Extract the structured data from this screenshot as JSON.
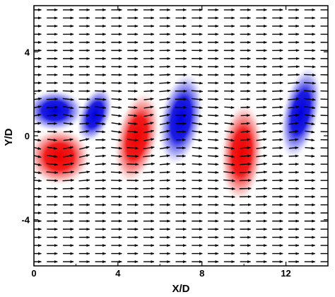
{
  "chart_data": {
    "type": "heatmap",
    "subtype": "vorticity contour with velocity vector field",
    "xlabel": "X/D",
    "ylabel": "Y/D",
    "xlim": [
      0,
      14
    ],
    "ylim": [
      -6.2,
      6.2
    ],
    "x_ticks": [
      0,
      4,
      8,
      12
    ],
    "x_tick_labels": [
      "0",
      "4",
      "8",
      "12"
    ],
    "y_ticks": [
      4,
      0,
      -4
    ],
    "y_tick_labels": [
      "4",
      "0",
      "-4"
    ],
    "grid": false,
    "legend": "none",
    "colors": {
      "positive": "#ee0000",
      "negative": "#0000dd",
      "arrow": "#000000"
    },
    "vortices": [
      {
        "sign": "negative",
        "x": 1.0,
        "y": 1.2,
        "rx": 1.1,
        "ry": 0.8,
        "tilt": 0
      },
      {
        "sign": "negative",
        "x": 2.9,
        "y": 1.0,
        "rx": 0.6,
        "ry": 1.1,
        "tilt": 20
      },
      {
        "sign": "positive",
        "x": 1.2,
        "y": -1.0,
        "rx": 1.2,
        "ry": 1.1,
        "tilt": 0
      },
      {
        "sign": "positive",
        "x": 4.9,
        "y": -0.1,
        "rx": 0.8,
        "ry": 1.8,
        "tilt": 12
      },
      {
        "sign": "negative",
        "x": 7.0,
        "y": 0.8,
        "rx": 0.8,
        "ry": 1.8,
        "tilt": 10
      },
      {
        "sign": "positive",
        "x": 9.9,
        "y": -0.8,
        "rx": 0.8,
        "ry": 1.9,
        "tilt": 4
      },
      {
        "sign": "negative",
        "x": 12.7,
        "y": 1.1,
        "rx": 0.7,
        "ry": 1.8,
        "tilt": 12
      }
    ],
    "vector_field": {
      "columns": 19,
      "rows": 32,
      "x_range": [
        0.1,
        13.9
      ],
      "y_range": [
        -6.0,
        6.0
      ],
      "freestream_direction": "+x"
    }
  }
}
